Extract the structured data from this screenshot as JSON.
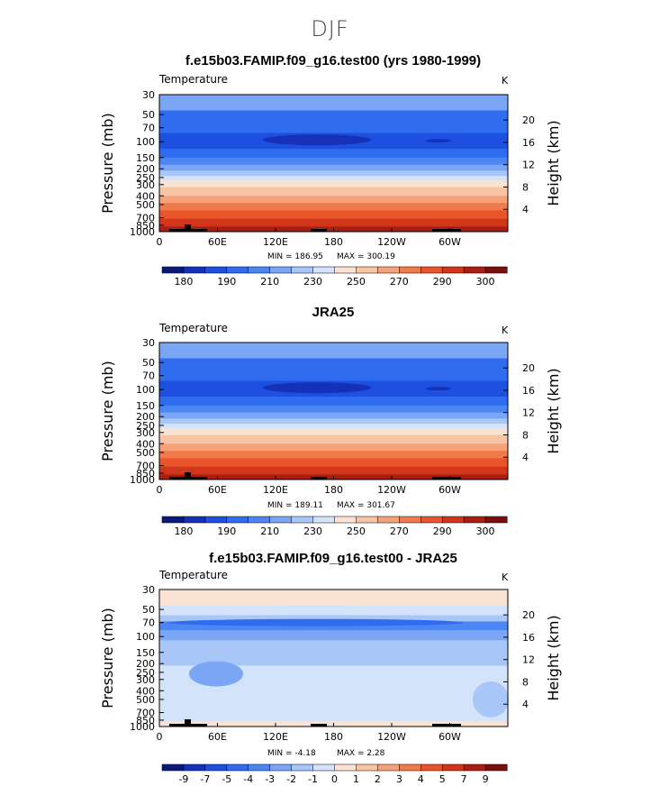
{
  "figure": {
    "title": "DJF"
  },
  "chart_data": [
    {
      "type": "heatmap",
      "title": "f.e15b03.FAMIP.f09_g16.test00 (yrs 1980-1999)",
      "variable": "Temperature",
      "units": "K",
      "ylabel": "Pressure (mb)",
      "ylabel_right": "Height (km)",
      "pressure_ticks": [
        30,
        50,
        70,
        100,
        150,
        200,
        250,
        300,
        400,
        500,
        700,
        850,
        1000
      ],
      "height_ticks": [
        20,
        16,
        12,
        8,
        4
      ],
      "lon_ticks": [
        "0",
        "60E",
        "120E",
        "180",
        "120W",
        "60W"
      ],
      "min_label": "MIN = 186.95",
      "max_label": "MAX = 300.19",
      "min": 186.95,
      "max": 300.19,
      "colorbar_labels": [
        "180",
        "190",
        "210",
        "230",
        "250",
        "270",
        "290",
        "300"
      ]
    },
    {
      "type": "heatmap",
      "title": "JRA25",
      "variable": "Temperature",
      "units": "K",
      "ylabel": "Pressure (mb)",
      "ylabel_right": "Height (km)",
      "pressure_ticks": [
        30,
        50,
        70,
        100,
        150,
        200,
        250,
        300,
        400,
        500,
        700,
        850,
        1000
      ],
      "height_ticks": [
        20,
        16,
        12,
        8,
        4
      ],
      "lon_ticks": [
        "0",
        "60E",
        "120E",
        "180",
        "120W",
        "60W"
      ],
      "min_label": "MIN = 189.11",
      "max_label": "MAX = 301.67",
      "min": 189.11,
      "max": 301.67,
      "colorbar_labels": [
        "180",
        "190",
        "210",
        "230",
        "250",
        "270",
        "290",
        "300"
      ]
    },
    {
      "type": "heatmap",
      "title": "f.e15b03.FAMIP.f09_g16.test00 - JRA25",
      "variable": "Temperature",
      "units": "K",
      "ylabel": "Pressure (mb)",
      "ylabel_right": "Height (km)",
      "pressure_ticks": [
        30,
        50,
        70,
        100,
        150,
        200,
        250,
        300,
        400,
        500,
        700,
        850,
        1000
      ],
      "height_ticks": [
        20,
        16,
        12,
        8,
        4
      ],
      "lon_ticks": [
        "0",
        "60E",
        "120E",
        "180",
        "120W",
        "60W"
      ],
      "min_label": "MIN = -4.18",
      "max_label": "MAX = 2.28",
      "min": -4.18,
      "max": 2.28,
      "colorbar_labels": [
        "-9",
        "-7",
        "-5",
        "-4",
        "-3",
        "-2",
        "-1",
        "0",
        "1",
        "2",
        "3",
        "4",
        "5",
        "7",
        "9"
      ]
    }
  ],
  "palette": {
    "colors": [
      "#0a1a7a",
      "#1431b8",
      "#1d4fe0",
      "#2f6cf0",
      "#4d86f3",
      "#7aa6f5",
      "#a8c6f7",
      "#d2e3fa",
      "#fae3d3",
      "#f8c4a6",
      "#f5a27a",
      "#f07a4b",
      "#e8552a",
      "#d1351a",
      "#a81e12",
      "#7a0f0f"
    ]
  }
}
